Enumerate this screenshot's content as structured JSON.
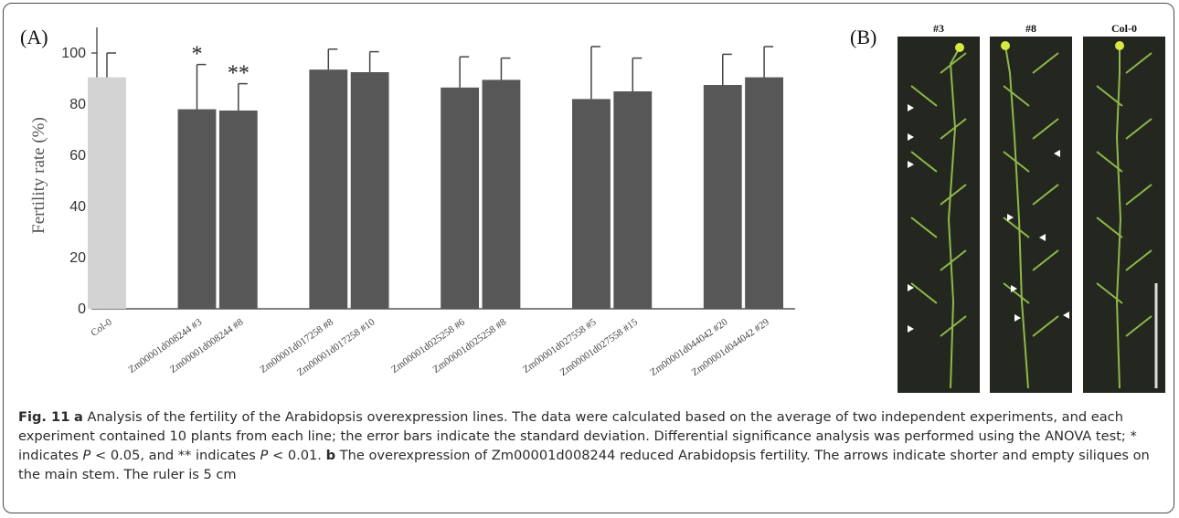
{
  "figure": {
    "panel_a_label": "(A)",
    "panel_b_label": "(B)",
    "photo_titles": [
      "#3",
      "#8",
      "Col-0"
    ]
  },
  "caption": {
    "lead": "Fig. 11",
    "part_a_letter": "a",
    "part_a_text": " Analysis of the fertility of the Arabidopsis overexpression lines. The data were calculated based on the average of two independent experiments, and each experiment contained 10 plants from each line; the error bars indicate the standard deviation. Differential significance analysis was performed using the ANOVA test; * indicates ",
    "p_symbol": "P",
    "p1": " < 0.05, and ** indicates ",
    "p2": " < 0.01. ",
    "part_b_letter": "b",
    "part_b_text": " The overexpression of Zm00001d008244 reduced Arabidopsis fertility. The arrows indicate shorter and empty siliques on the main stem. The ruler is 5 cm"
  },
  "colors": {
    "control_bar": "#d3d3d3",
    "line_bar": "#575757",
    "error_bar": "#444444",
    "photo_bg": "#23271f",
    "stem": "#8fb84a",
    "flower": "#d6ea42",
    "arrow": "#ffffff",
    "ruler": "#dcdcdc"
  },
  "chart_data": {
    "type": "bar",
    "title": "",
    "xlabel": "",
    "ylabel": "Fertility rate (%)",
    "ylim": [
      0,
      110
    ],
    "yticks": [
      0,
      20,
      40,
      60,
      80,
      100
    ],
    "grid": false,
    "legend": "none",
    "categories": [
      "Col-0",
      "Zm00001d008244 #3",
      "Zm00001d008244 #8",
      "Zm00001d017258 #8",
      "Zm00001d017258 #10",
      "Zm00001d025258 #6",
      "Zm00001d025258 #8",
      "Zm00001d027558 #5",
      "Zm00001d027558 #15",
      "Zm00001d044042 #20",
      "Zm00001d044042 #29"
    ],
    "values": [
      90.5,
      78,
      77.5,
      93.5,
      92.5,
      86.5,
      89.5,
      82,
      85,
      87.5,
      90.5
    ],
    "errors": [
      9.5,
      17.5,
      10.5,
      8,
      8,
      12,
      8.5,
      20.5,
      13,
      12,
      12
    ],
    "annotations": [
      "",
      "*",
      "**",
      "",
      "",
      "",
      "",
      "",
      "",
      "",
      ""
    ]
  }
}
